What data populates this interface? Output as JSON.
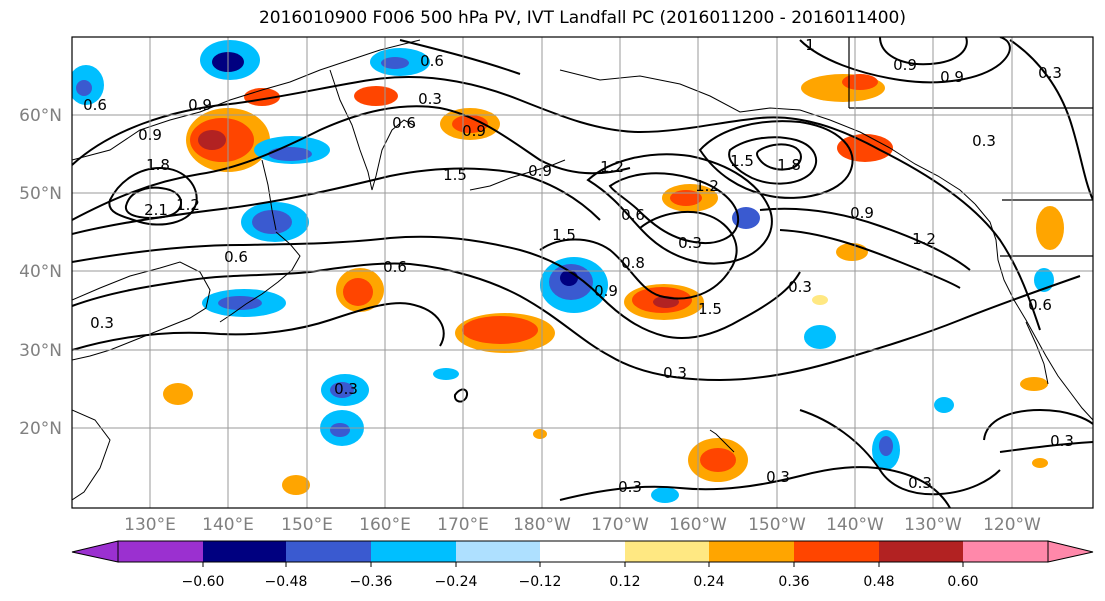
{
  "title": "2016010900 F006 500 hPa PV, IVT Landfall PC (2016011200 - 2016011400)",
  "map": {
    "lat_labels": [
      "60°N",
      "50°N",
      "40°N",
      "30°N",
      "20°N"
    ],
    "lon_labels": [
      "130°E",
      "140°E",
      "150°E",
      "160°E",
      "170°E",
      "180°W",
      "170°W",
      "160°W",
      "150°W",
      "140°W",
      "130°W",
      "120°W"
    ],
    "contour_labels": [
      {
        "text": "0.6"
      },
      {
        "text": "0.3"
      },
      {
        "text": "0.6"
      },
      {
        "text": "0.9"
      },
      {
        "text": "0.9"
      },
      {
        "text": "0.6"
      },
      {
        "text": "0.9"
      },
      {
        "text": "1.8"
      },
      {
        "text": "2.1"
      },
      {
        "text": "1.2"
      },
      {
        "text": "1.5"
      },
      {
        "text": "0.9"
      },
      {
        "text": "1.2"
      },
      {
        "text": "0.6"
      },
      {
        "text": "1.5"
      },
      {
        "text": "1.8"
      },
      {
        "text": "1.5"
      },
      {
        "text": "1.2"
      },
      {
        "text": "0.6"
      },
      {
        "text": "0.3"
      },
      {
        "text": "0.8"
      },
      {
        "text": "0.9"
      },
      {
        "text": "1.5"
      },
      {
        "text": "0.9"
      },
      {
        "text": "1.2"
      },
      {
        "text": "0.3"
      },
      {
        "text": "0.6"
      },
      {
        "text": "0.3"
      },
      {
        "text": "0.3"
      },
      {
        "text": "0.3"
      },
      {
        "text": "0.3"
      },
      {
        "text": "0.3"
      },
      {
        "text": "0.3"
      },
      {
        "text": "0.3"
      },
      {
        "text": "0.6"
      },
      {
        "text": "0.9"
      },
      {
        "text": "0.3"
      },
      {
        "text": "1"
      },
      {
        "text": "0.9"
      },
      {
        "text": "0.3"
      }
    ],
    "colors": {
      "contour": "#000000",
      "grid": "#9a9a9a",
      "coast": "#000000",
      "tick_label": "#808080"
    }
  },
  "colorbar": {
    "tick_labels": [
      "−0.60",
      "−0.48",
      "−0.36",
      "−0.24",
      "−0.12",
      "0.12",
      "0.24",
      "0.36",
      "0.48",
      "0.60"
    ],
    "colors": [
      "#9b30d0",
      "#000080",
      "#3a5ad0",
      "#00bfff",
      "#aee0ff",
      "#ffffff",
      "#ffe882",
      "#ffa500",
      "#ff4500",
      "#b22222",
      "#ff88aa"
    ]
  }
}
